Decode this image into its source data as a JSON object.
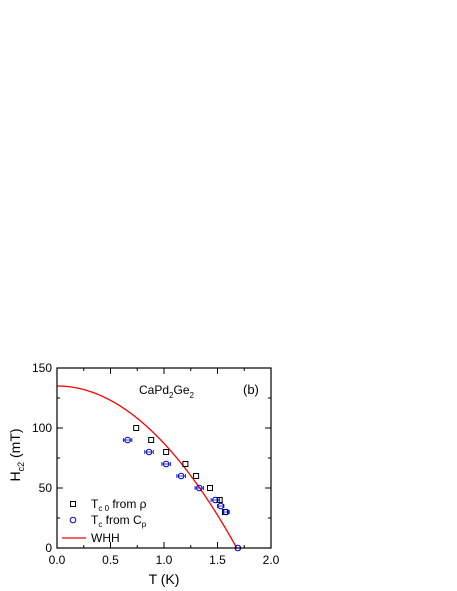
{
  "chart_data": {
    "type": "scatter",
    "xlabel": "T (K)",
    "ylabel_main": "H",
    "ylabel_sub": "c2",
    "ylabel_unit": " (mT)",
    "xlim": [
      0.0,
      2.0
    ],
    "ylim": [
      0,
      150
    ],
    "xticks": [
      {
        "v": 0.0,
        "t": "0.0"
      },
      {
        "v": 0.5,
        "t": "0.5"
      },
      {
        "v": 1.0,
        "t": "1.0"
      },
      {
        "v": 1.5,
        "t": "1.5"
      },
      {
        "v": 2.0,
        "t": "2.0"
      }
    ],
    "yticks": [
      {
        "v": 0,
        "t": "0"
      },
      {
        "v": 50,
        "t": "50"
      },
      {
        "v": 100,
        "t": "100"
      },
      {
        "v": 150,
        "t": "150"
      }
    ],
    "compound": {
      "main": "CaPd",
      "sub1": "2",
      "mid": "Ge",
      "sub2": "2"
    },
    "panel_label": "(b)",
    "legend_placement": "bottom-left",
    "series": [
      {
        "name": "T_c0 from ρ",
        "legend": {
          "main": "T",
          "sub": "c 0",
          "rest": " from ρ"
        },
        "marker": "square",
        "color": "#000000",
        "x": [
          0.74,
          0.88,
          1.02,
          1.2,
          1.3,
          1.43,
          1.52,
          1.57
        ],
        "y": [
          100,
          90,
          80,
          70,
          60,
          50,
          40,
          30
        ]
      },
      {
        "name": "T_c from C_p",
        "legend": {
          "main": "T",
          "sub": "c",
          "rest": " from C",
          "sub2": "p"
        },
        "marker": "circle",
        "color": "#0000cc",
        "x": [
          0.66,
          0.86,
          1.02,
          1.16,
          1.33,
          1.48,
          1.53,
          1.58,
          1.69
        ],
        "y": [
          90,
          80,
          70,
          60,
          50,
          40,
          35,
          30,
          0
        ],
        "xerr": [
          0.04,
          0.04,
          0.04,
          0.04,
          0.04,
          0.04,
          0.03,
          0.03,
          0.02
        ]
      },
      {
        "name": "WHH",
        "legend": {
          "main": "WHH"
        },
        "marker": "line",
        "color": "#ff0000",
        "Hc2_0": 135,
        "Tc": 1.68
      }
    ]
  }
}
